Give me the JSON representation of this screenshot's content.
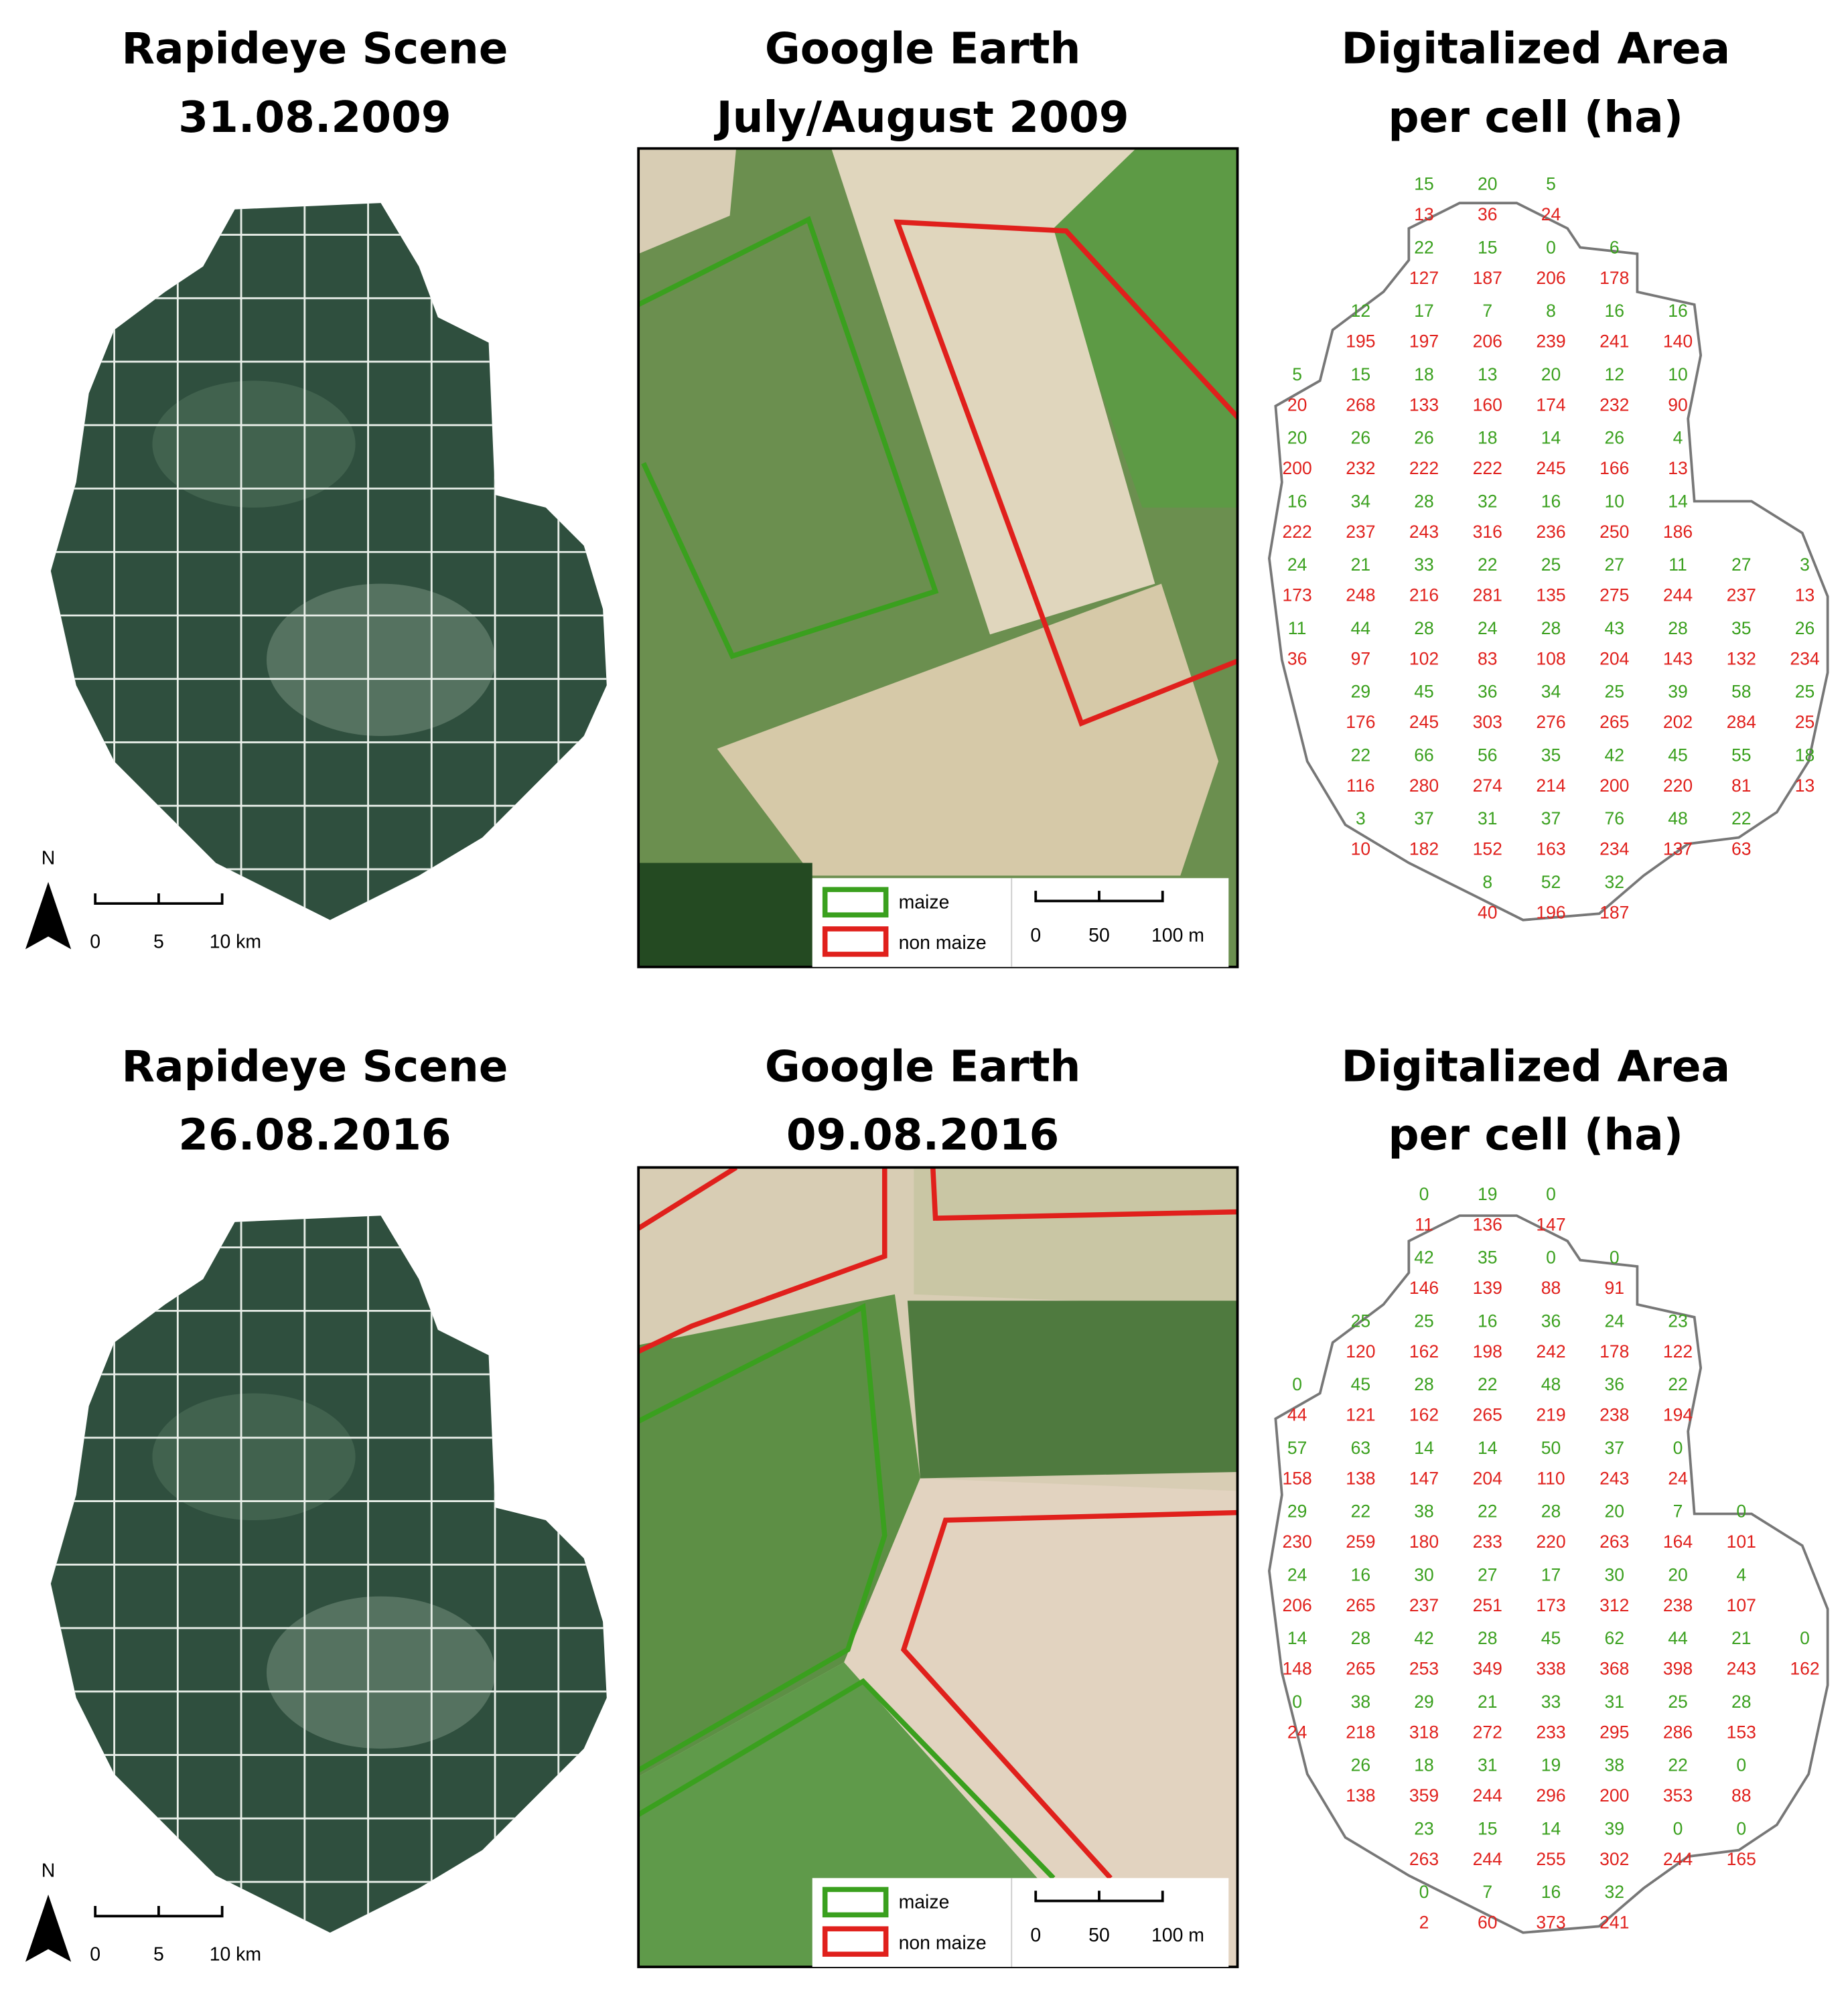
{
  "panels": [
    {
      "rapideye_title": [
        "Rapideye Scene",
        "31.08.2009"
      ],
      "google_title": [
        "Google Earth",
        "July/August 2009"
      ],
      "area_title": [
        "Digitalized Area",
        "per cell (ha)"
      ],
      "maize": [
        [
          null,
          null,
          15,
          20,
          5,
          null,
          null,
          null,
          null
        ],
        [
          null,
          null,
          22,
          15,
          0,
          6,
          null,
          null,
          null
        ],
        [
          null,
          12,
          17,
          7,
          8,
          16,
          16,
          null,
          null
        ],
        [
          5,
          15,
          18,
          13,
          20,
          12,
          10,
          null,
          null
        ],
        [
          20,
          26,
          26,
          18,
          14,
          26,
          4,
          null,
          null
        ],
        [
          16,
          34,
          28,
          32,
          16,
          10,
          14,
          null,
          null
        ],
        [
          24,
          21,
          33,
          22,
          25,
          27,
          11,
          27,
          3
        ],
        [
          11,
          44,
          28,
          24,
          28,
          43,
          28,
          35,
          26
        ],
        [
          null,
          29,
          45,
          36,
          34,
          25,
          39,
          58,
          25
        ],
        [
          null,
          22,
          66,
          56,
          35,
          42,
          45,
          55,
          18
        ],
        [
          null,
          3,
          37,
          31,
          37,
          76,
          48,
          22,
          null
        ],
        [
          null,
          null,
          null,
          8,
          52,
          32,
          null,
          null,
          null
        ]
      ],
      "non_maize": [
        [
          null,
          null,
          13,
          36,
          24,
          null,
          null,
          null,
          null
        ],
        [
          null,
          null,
          127,
          187,
          206,
          178,
          null,
          null,
          null
        ],
        [
          null,
          195,
          197,
          206,
          239,
          241,
          140,
          null,
          null
        ],
        [
          20,
          268,
          133,
          160,
          174,
          232,
          90,
          null,
          null
        ],
        [
          200,
          232,
          222,
          222,
          245,
          166,
          13,
          null,
          null
        ],
        [
          222,
          237,
          243,
          316,
          236,
          250,
          186,
          null,
          null
        ],
        [
          173,
          248,
          216,
          281,
          135,
          275,
          244,
          237,
          13
        ],
        [
          36,
          97,
          102,
          83,
          108,
          204,
          143,
          132,
          234
        ],
        [
          null,
          176,
          245,
          303,
          276,
          265,
          202,
          284,
          25
        ],
        [
          null,
          116,
          280,
          274,
          214,
          200,
          220,
          81,
          13
        ],
        [
          null,
          10,
          182,
          152,
          163,
          234,
          137,
          63,
          null
        ],
        [
          null,
          null,
          null,
          40,
          196,
          187,
          null,
          null,
          null
        ]
      ]
    },
    {
      "rapideye_title": [
        "Rapideye Scene",
        "26.08.2016"
      ],
      "google_title": [
        "Google Earth",
        "09.08.2016"
      ],
      "area_title": [
        "Digitalized Area",
        "per cell (ha)"
      ],
      "maize": [
        [
          null,
          null,
          0,
          19,
          0,
          null,
          null,
          null,
          null
        ],
        [
          null,
          null,
          42,
          35,
          0,
          0,
          null,
          null,
          null
        ],
        [
          null,
          25,
          25,
          16,
          36,
          24,
          23,
          null,
          null
        ],
        [
          0,
          45,
          28,
          22,
          48,
          36,
          22,
          null,
          null
        ],
        [
          57,
          63,
          14,
          14,
          50,
          37,
          0,
          null,
          null
        ],
        [
          29,
          22,
          38,
          22,
          28,
          20,
          7,
          0,
          null
        ],
        [
          24,
          16,
          30,
          27,
          17,
          30,
          20,
          4,
          null
        ],
        [
          14,
          28,
          42,
          28,
          45,
          62,
          44,
          21,
          0
        ],
        [
          0,
          38,
          29,
          21,
          33,
          31,
          25,
          28,
          null
        ],
        [
          null,
          26,
          18,
          31,
          19,
          38,
          22,
          0,
          null
        ],
        [
          null,
          null,
          23,
          15,
          14,
          39,
          0,
          0,
          null
        ],
        [
          null,
          null,
          0,
          7,
          16,
          32,
          null,
          null,
          null
        ]
      ],
      "non_maize": [
        [
          null,
          null,
          11,
          136,
          147,
          null,
          null,
          null,
          null
        ],
        [
          null,
          null,
          146,
          139,
          88,
          91,
          null,
          null,
          null
        ],
        [
          null,
          120,
          162,
          198,
          242,
          178,
          122,
          null,
          null
        ],
        [
          44,
          121,
          162,
          265,
          219,
          238,
          194,
          null,
          null
        ],
        [
          158,
          138,
          147,
          204,
          110,
          243,
          24,
          null,
          null
        ],
        [
          230,
          259,
          180,
          233,
          220,
          263,
          164,
          101,
          null
        ],
        [
          206,
          265,
          237,
          251,
          173,
          312,
          238,
          107,
          null
        ],
        [
          148,
          265,
          253,
          349,
          338,
          368,
          398,
          243,
          162
        ],
        [
          24,
          218,
          318,
          272,
          233,
          295,
          286,
          153,
          null
        ],
        [
          null,
          138,
          359,
          244,
          296,
          200,
          353,
          88,
          null
        ],
        [
          null,
          null,
          263,
          244,
          255,
          302,
          244,
          165,
          null
        ],
        [
          null,
          null,
          2,
          60,
          373,
          241,
          null,
          null,
          null
        ]
      ]
    }
  ],
  "north": "N",
  "km_scale": [
    "0",
    "5",
    "10 km"
  ],
  "m_scale": [
    "0",
    "50",
    "100 m"
  ],
  "legend": [
    "maize",
    "non maize"
  ]
}
